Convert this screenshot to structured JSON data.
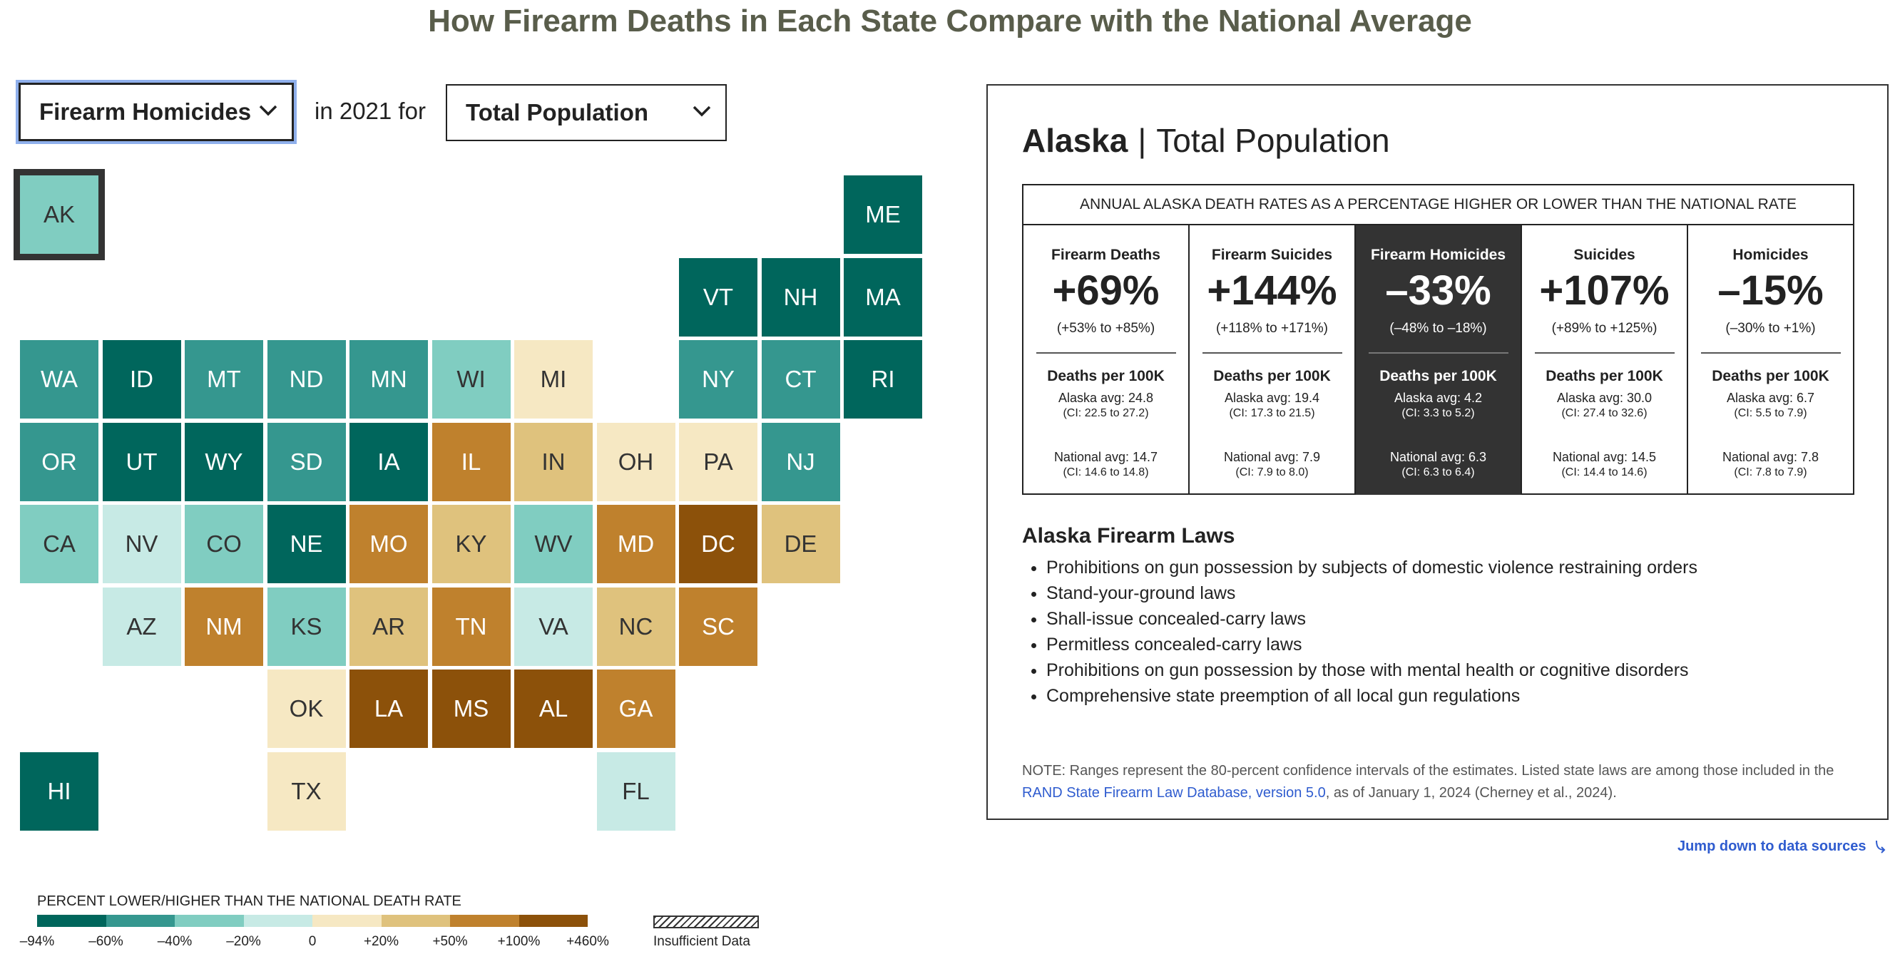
{
  "title": "How Firearm Deaths in Each State Compare with the National Average",
  "controls": {
    "measure": "Firearm Homicides",
    "connector": "in 2021 for",
    "population": "Total Population"
  },
  "colors": {
    "v-94": "#00665c",
    "v-60": "#35978f",
    "v-40": "#80cdc1",
    "v-20": "#c7eae5",
    "v0": "#f6e8c3",
    "v20": "#dfc27d",
    "v50": "#bf812d",
    "v100": "#8c510a"
  },
  "states": [
    {
      "abbr": "AK",
      "bucket": "v-40"
    },
    {
      "abbr": "ME",
      "bucket": "v-94"
    },
    {
      "abbr": "VT",
      "bucket": "v-94"
    },
    {
      "abbr": "NH",
      "bucket": "v-94"
    },
    {
      "abbr": "MA",
      "bucket": "v-94"
    },
    {
      "abbr": "WA",
      "bucket": "v-60"
    },
    {
      "abbr": "ID",
      "bucket": "v-94"
    },
    {
      "abbr": "MT",
      "bucket": "v-60"
    },
    {
      "abbr": "ND",
      "bucket": "v-60"
    },
    {
      "abbr": "MN",
      "bucket": "v-60"
    },
    {
      "abbr": "WI",
      "bucket": "v-40"
    },
    {
      "abbr": "MI",
      "bucket": "v0"
    },
    {
      "abbr": "NY",
      "bucket": "v-60"
    },
    {
      "abbr": "CT",
      "bucket": "v-60"
    },
    {
      "abbr": "RI",
      "bucket": "v-94"
    },
    {
      "abbr": "OR",
      "bucket": "v-60"
    },
    {
      "abbr": "UT",
      "bucket": "v-94"
    },
    {
      "abbr": "WY",
      "bucket": "v-94"
    },
    {
      "abbr": "SD",
      "bucket": "v-60"
    },
    {
      "abbr": "IA",
      "bucket": "v-94"
    },
    {
      "abbr": "IL",
      "bucket": "v50"
    },
    {
      "abbr": "IN",
      "bucket": "v20"
    },
    {
      "abbr": "OH",
      "bucket": "v0"
    },
    {
      "abbr": "PA",
      "bucket": "v0"
    },
    {
      "abbr": "NJ",
      "bucket": "v-60"
    },
    {
      "abbr": "CA",
      "bucket": "v-40"
    },
    {
      "abbr": "NV",
      "bucket": "v-20"
    },
    {
      "abbr": "CO",
      "bucket": "v-40"
    },
    {
      "abbr": "NE",
      "bucket": "v-94"
    },
    {
      "abbr": "MO",
      "bucket": "v50"
    },
    {
      "abbr": "KY",
      "bucket": "v20"
    },
    {
      "abbr": "WV",
      "bucket": "v-40"
    },
    {
      "abbr": "MD",
      "bucket": "v50"
    },
    {
      "abbr": "DC",
      "bucket": "v100"
    },
    {
      "abbr": "DE",
      "bucket": "v20"
    },
    {
      "abbr": "AZ",
      "bucket": "v-20"
    },
    {
      "abbr": "NM",
      "bucket": "v50"
    },
    {
      "abbr": "KS",
      "bucket": "v-40"
    },
    {
      "abbr": "AR",
      "bucket": "v20"
    },
    {
      "abbr": "TN",
      "bucket": "v50"
    },
    {
      "abbr": "VA",
      "bucket": "v-20"
    },
    {
      "abbr": "NC",
      "bucket": "v20"
    },
    {
      "abbr": "SC",
      "bucket": "v50"
    },
    {
      "abbr": "OK",
      "bucket": "v0"
    },
    {
      "abbr": "LA",
      "bucket": "v100"
    },
    {
      "abbr": "MS",
      "bucket": "v100"
    },
    {
      "abbr": "AL",
      "bucket": "v100"
    },
    {
      "abbr": "GA",
      "bucket": "v50"
    },
    {
      "abbr": "HI",
      "bucket": "v-94"
    },
    {
      "abbr": "TX",
      "bucket": "v0"
    },
    {
      "abbr": "FL",
      "bucket": "v-20"
    }
  ],
  "panel": {
    "state": "Alaska",
    "separator": "|",
    "population": "Total Population",
    "table_header": "ANNUAL ALASKA DEATH RATES AS A PERCENTAGE HIGHER OR LOWER THAN THE NATIONAL RATE",
    "columns": [
      {
        "name": "Firearm Deaths",
        "pct": "+69%",
        "ci": "(+53% to +85%)",
        "dp": "Deaths per 100K",
        "state_avg": "Alaska avg: 24.8",
        "state_ci": "(CI: 22.5 to 27.2)",
        "nat_avg": "National avg: 14.7",
        "nat_ci": "(CI: 14.6 to 14.8)"
      },
      {
        "name": "Firearm Suicides",
        "pct": "+144%",
        "ci": "(+118% to +171%)",
        "dp": "Deaths per 100K",
        "state_avg": "Alaska avg: 19.4",
        "state_ci": "(CI: 17.3 to 21.5)",
        "nat_avg": "National avg: 7.9",
        "nat_ci": "(CI: 7.9 to 8.0)"
      },
      {
        "name": "Firearm Homicides",
        "pct": "–33%",
        "ci": "(–48% to –18%)",
        "dp": "Deaths per 100K",
        "state_avg": "Alaska avg: 4.2",
        "state_ci": "(CI: 3.3 to 5.2)",
        "nat_avg": "National avg: 6.3",
        "nat_ci": "(CI: 6.3 to 6.4)"
      },
      {
        "name": "Suicides",
        "pct": "+107%",
        "ci": "(+89% to +125%)",
        "dp": "Deaths per 100K",
        "state_avg": "Alaska avg: 30.0",
        "state_ci": "(CI: 27.4 to 32.6)",
        "nat_avg": "National avg: 14.5",
        "nat_ci": "(CI: 14.4 to 14.6)"
      },
      {
        "name": "Homicides",
        "pct": "–15%",
        "ci": "(–30% to +1%)",
        "dp": "Deaths per 100K",
        "state_avg": "Alaska avg: 6.7",
        "state_ci": "(CI: 5.5 to 7.9)",
        "nat_avg": "National avg: 7.8",
        "nat_ci": "(CI: 7.8 to 7.9)"
      }
    ],
    "active_column": 2,
    "laws_title": "Alaska Firearm Laws",
    "laws": [
      "Prohibitions on gun possession by subjects of domestic violence restraining orders",
      "Stand-your-ground laws",
      "Shall-issue concealed-carry laws",
      "Permitless concealed-carry laws",
      "Prohibitions on gun possession by those with mental health or cognitive disorders",
      "Comprehensive state preemption of all local gun regulations"
    ],
    "note_prefix": "NOTE: Ranges represent the 80-percent confidence intervals of the estimates. Listed state laws are among those included in the",
    "note_link": "RAND State Firearm Law Database, version 5.0",
    "note_suffix": ", as of January 1, 2024 (Cherney et al., 2024)."
  },
  "jump_link": "Jump down to data sources",
  "legend": {
    "title": "PERCENT LOWER/HIGHER THAN THE NATIONAL DEATH RATE",
    "labels": [
      "–94%",
      "–60%",
      "–40%",
      "–20%",
      "0",
      "+20%",
      "+50%",
      "+100%",
      "+460%"
    ],
    "insufficient": "Insufficient Data"
  }
}
